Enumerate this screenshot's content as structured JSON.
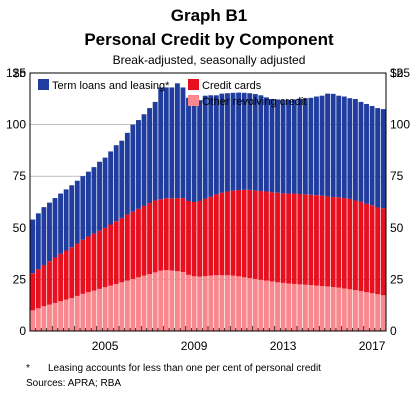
{
  "header": {
    "graph_label": "Graph B1",
    "title": "Personal Credit by Component",
    "subtitle": "Break-adjusted, seasonally adjusted"
  },
  "footer": {
    "note_marker": "*",
    "note_text": "Leasing accounts for less than one per cent of personal credit",
    "sources": "Sources: APRA; RBA"
  },
  "colors": {
    "term_loans": "#1f3c9e",
    "credit_cards": "#e8101e",
    "other_revolving": "#f8888e",
    "grid": "#9a9a9a"
  },
  "chart_data": {
    "type": "bar",
    "stacked": true,
    "unit_left": "$b",
    "unit_right": "$b",
    "y_ticks": [
      "0",
      "25",
      "50",
      "75",
      "100",
      "125"
    ],
    "ylim": [
      0,
      125
    ],
    "x_tick_labels": [
      "2005",
      "2009",
      "2013",
      "2017"
    ],
    "x_tick_category_index": [
      13,
      29,
      45,
      61
    ],
    "grid": true,
    "legend": [
      {
        "name": "Term loans and leasing*",
        "key": "term_loans"
      },
      {
        "name": "Credit cards",
        "key": "credit_cards"
      },
      {
        "name": "Other revolving credit",
        "key": "other_revolving"
      }
    ],
    "categories": [
      "Q1 2002",
      "Q2 2002",
      "Q3 2002",
      "Q4 2002",
      "Q1 2003",
      "Q2 2003",
      "Q3 2003",
      "Q4 2003",
      "Q1 2004",
      "Q2 2004",
      "Q3 2004",
      "Q4 2004",
      "Q1 2005",
      "Q2 2005",
      "Q3 2005",
      "Q4 2005",
      "Q1 2006",
      "Q2 2006",
      "Q3 2006",
      "Q4 2006",
      "Q1 2007",
      "Q2 2007",
      "Q3 2007",
      "Q4 2007",
      "Q1 2008",
      "Q2 2008",
      "Q3 2008",
      "Q4 2008",
      "Q1 2009",
      "Q2 2009",
      "Q3 2009",
      "Q4 2009",
      "Q1 2010",
      "Q2 2010",
      "Q3 2010",
      "Q4 2010",
      "Q1 2011",
      "Q2 2011",
      "Q3 2011",
      "Q4 2011",
      "Q1 2012",
      "Q2 2012",
      "Q3 2012",
      "Q4 2012",
      "Q1 2013",
      "Q2 2013",
      "Q3 2013",
      "Q4 2013",
      "Q1 2014",
      "Q2 2014",
      "Q3 2014",
      "Q4 2014",
      "Q1 2015",
      "Q2 2015",
      "Q3 2015",
      "Q4 2015",
      "Q1 2016",
      "Q2 2016",
      "Q3 2016",
      "Q4 2016",
      "Q1 2017",
      "Q2 2017",
      "Q3 2017",
      "Q4 2017"
    ],
    "series": [
      {
        "key": "other_revolving",
        "name": "Other revolving credit",
        "values": [
          10.0,
          11.0,
          12.0,
          12.8,
          13.6,
          14.4,
          15.2,
          16.0,
          17.0,
          18.0,
          18.8,
          19.6,
          20.4,
          21.2,
          22.0,
          22.8,
          23.6,
          24.4,
          25.2,
          26.0,
          26.8,
          27.6,
          28.4,
          29.2,
          29.5,
          29.3,
          29.0,
          28.6,
          27.2,
          26.5,
          26.4,
          26.6,
          26.8,
          27.0,
          27.0,
          27.0,
          26.8,
          26.5,
          26.0,
          25.6,
          25.2,
          24.8,
          24.4,
          24.0,
          23.6,
          23.3,
          23.0,
          22.8,
          22.6,
          22.4,
          22.2,
          22.0,
          21.8,
          21.6,
          21.3,
          21.0,
          20.6,
          20.2,
          19.8,
          19.3,
          18.8,
          18.3,
          17.8,
          17.3
        ]
      },
      {
        "key": "credit_cards",
        "name": "Credit cards",
        "values": [
          18.0,
          19.0,
          20.0,
          21.0,
          22.0,
          23.0,
          23.8,
          24.6,
          25.4,
          26.2,
          27.0,
          27.6,
          28.2,
          28.8,
          29.6,
          30.4,
          31.2,
          32.0,
          32.6,
          33.2,
          33.8,
          34.4,
          34.8,
          34.6,
          34.8,
          35.0,
          35.4,
          35.8,
          35.8,
          36.0,
          36.6,
          37.4,
          38.2,
          39.2,
          40.0,
          40.6,
          41.2,
          41.8,
          42.4,
          42.8,
          42.8,
          43.0,
          43.2,
          43.2,
          43.4,
          43.4,
          43.6,
          43.8,
          43.8,
          43.8,
          43.8,
          43.8,
          43.8,
          43.6,
          43.6,
          43.8,
          43.8,
          43.8,
          43.4,
          43.4,
          42.8,
          42.6,
          42.0,
          42.2
        ]
      },
      {
        "key": "term_loans",
        "name": "Term loans and leasing*",
        "values": [
          26.0,
          27.0,
          28.0,
          28.4,
          28.8,
          29.2,
          29.6,
          30.0,
          30.4,
          30.8,
          31.4,
          32.2,
          33.4,
          34.0,
          35.4,
          36.8,
          37.4,
          39.6,
          42.2,
          43.0,
          44.4,
          46.0,
          47.8,
          54.2,
          53.7,
          53.7,
          55.6,
          53.6,
          50.0,
          48.7,
          48.8,
          50.0,
          49.2,
          48.0,
          48.0,
          47.6,
          47.4,
          47.2,
          47.0,
          46.8,
          46.8,
          46.4,
          45.6,
          45.2,
          45.2,
          45.3,
          45.4,
          45.6,
          46.2,
          46.6,
          47.0,
          47.8,
          48.4,
          49.8,
          50.0,
          49.2,
          49.2,
          48.8,
          49.2,
          48.3,
          48.4,
          48.1,
          48.2,
          48.0
        ]
      }
    ]
  }
}
